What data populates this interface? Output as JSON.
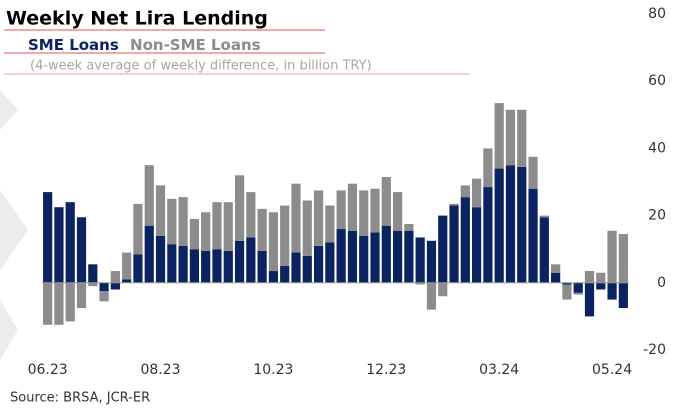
{
  "chart_data": {
    "type": "bar",
    "stacked": true,
    "title": "Weekly Net Lira Lending",
    "subtitle": "(4-week average of weekly difference, in billion TRY)",
    "source": "Source: BRSA, JCR-ER",
    "categories": [
      "06.23",
      null,
      null,
      null,
      null,
      null,
      null,
      null,
      null,
      null,
      "08.23",
      null,
      null,
      null,
      null,
      null,
      null,
      null,
      null,
      null,
      "10.23",
      null,
      null,
      null,
      null,
      null,
      null,
      null,
      null,
      null,
      "12.23",
      null,
      null,
      null,
      null,
      null,
      null,
      null,
      null,
      null,
      "03.24",
      null,
      null,
      null,
      null,
      null,
      null,
      null,
      null,
      null,
      "05.24",
      null
    ],
    "series": [
      {
        "name": "SME Loans",
        "color": "#0b2461",
        "values": [
          27,
          22.5,
          24,
          19.5,
          5.5,
          -2.5,
          -2,
          1,
          8.5,
          17,
          14,
          11.5,
          11,
          10,
          9.5,
          10,
          9.5,
          12.5,
          13.5,
          9.5,
          3.5,
          5,
          9,
          8,
          11,
          12,
          16,
          15.5,
          14,
          15,
          17,
          15.5,
          15.5,
          13.5,
          12.5,
          20,
          23,
          25.5,
          22.5,
          28.5,
          34,
          35,
          34.5,
          28,
          19.5,
          3,
          -0.5,
          -3,
          -10,
          -2,
          -5,
          -7.5
        ]
      },
      {
        "name": "Non-SME Loans",
        "color": "#8c8c8c",
        "values": [
          -12.5,
          -12.5,
          -11.5,
          -7.5,
          -1,
          -3,
          3.5,
          8,
          15,
          18,
          15,
          13.5,
          14.5,
          9,
          11.5,
          14,
          14.5,
          19.5,
          13.5,
          12.5,
          17.5,
          18,
          20.5,
          16.5,
          16.5,
          11,
          11.5,
          14,
          13.5,
          13,
          14.5,
          11.5,
          2,
          -0.5,
          -8,
          -4,
          0.5,
          3.5,
          8.5,
          11.5,
          19.5,
          16.5,
          17,
          9.5,
          0.5,
          2.5,
          -4.5,
          -0.5,
          3.5,
          3,
          15.5,
          14.5
        ]
      }
    ],
    "ylim": [
      -20,
      80
    ],
    "yticks": [
      -20,
      0,
      20,
      40,
      60,
      80
    ]
  }
}
